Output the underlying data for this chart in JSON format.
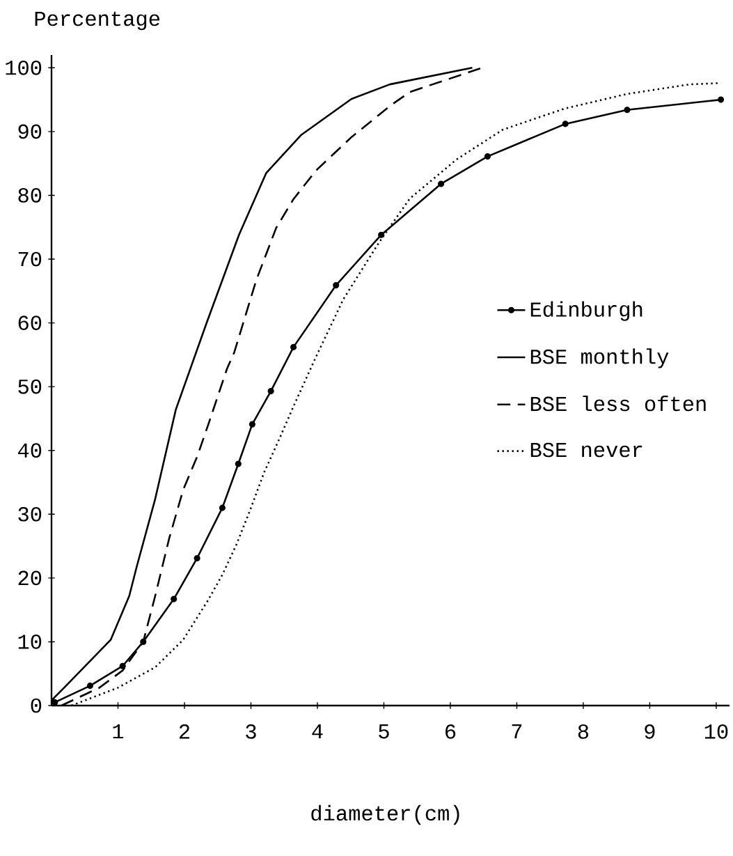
{
  "chart_data": {
    "type": "line",
    "xlabel": "diameter(cm)",
    "ylabel": "Percentage",
    "xlim": [
      0,
      10.2
    ],
    "ylim": [
      0,
      102
    ],
    "xticks": [
      1,
      2,
      3,
      4,
      5,
      6,
      7,
      8,
      9,
      10
    ],
    "yticks": [
      0,
      10,
      20,
      30,
      40,
      50,
      60,
      70,
      80,
      90,
      100
    ],
    "legend": "right",
    "series": [
      {
        "name": "Edinburgh",
        "color": "#000000",
        "line_style": "solid",
        "marker": "circle",
        "x": [
          0.05,
          0.58,
          1.07,
          1.38,
          1.84,
          2.19,
          2.57,
          2.81,
          3.02,
          3.3,
          3.64,
          4.28,
          4.96,
          5.86,
          6.56,
          7.73,
          8.66,
          10.07
        ],
        "values": [
          0.5,
          3.1,
          6.2,
          10,
          16.7,
          23.1,
          31,
          37.9,
          44.1,
          49.3,
          56.2,
          65.9,
          73.8,
          81.8,
          86.1,
          91.2,
          93.4,
          95
        ]
      },
      {
        "name": "BSE monthly",
        "color": "#000000",
        "line_style": "solid",
        "marker": "none",
        "x": [
          0,
          0.19,
          0.89,
          1.17,
          1.28,
          1.56,
          1.87,
          2.33,
          2.82,
          3.23,
          3.76,
          4.51,
          5.09,
          6.33
        ],
        "values": [
          0.8,
          2.8,
          10.3,
          17.2,
          21.7,
          32.4,
          46.4,
          59.9,
          73.8,
          83.5,
          89.5,
          95.1,
          97.4,
          100
        ]
      },
      {
        "name": "BSE less often",
        "color": "#000000",
        "line_style": "dashed",
        "marker": "none",
        "x": [
          0.15,
          0.72,
          1.07,
          1.38,
          1.56,
          1.77,
          1.98,
          2.19,
          2.36,
          2.64,
          2.75,
          3.08,
          3.38,
          3.64,
          3.98,
          4.51,
          5.09,
          5.39,
          6.45
        ],
        "values": [
          0,
          2.8,
          5.5,
          10,
          17.2,
          26.2,
          33.8,
          39,
          44.1,
          52.8,
          55.4,
          66.7,
          74.9,
          79.4,
          83.9,
          89.1,
          94,
          96.2,
          99.9
        ]
      },
      {
        "name": "BSE never",
        "color": "#000000",
        "line_style": "dotted",
        "marker": "none",
        "x": [
          0.3,
          1,
          1.56,
          1.98,
          2.36,
          2.57,
          2.78,
          2.99,
          3.2,
          3.41,
          3.64,
          3.98,
          4.39,
          4.92,
          5.39,
          6.09,
          6.79,
          7.72,
          8.66,
          9.6,
          10.07
        ],
        "values": [
          0,
          2.8,
          6,
          10.3,
          16.6,
          20.5,
          25.2,
          30.7,
          36.6,
          41.4,
          46.9,
          54.7,
          63.7,
          72.5,
          79.5,
          85.6,
          90.3,
          93.6,
          95.9,
          97.4,
          97.6
        ]
      }
    ]
  }
}
